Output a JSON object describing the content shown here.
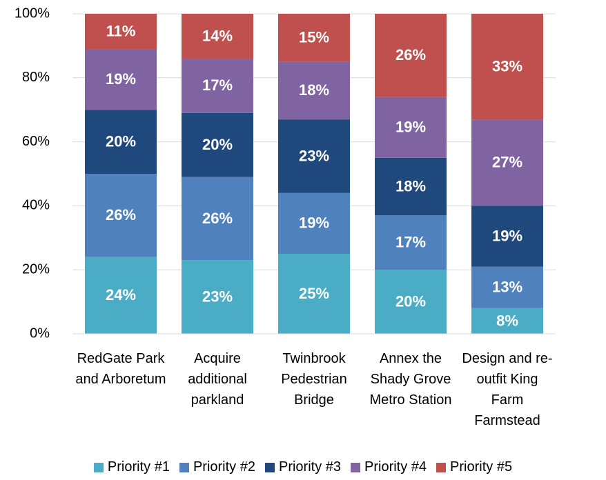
{
  "chart_data": {
    "type": "stacked_bar",
    "categories": [
      "RedGate Park and Arboretum",
      "Acquire additional parkland",
      "Twinbrook Pedestrian Bridge",
      "Annex the Shady Grove Metro Station",
      "Design and re-outfit King Farm Farmstead"
    ],
    "series": [
      {
        "name": "Priority #1",
        "color": "#4bacc6",
        "values": [
          24,
          23,
          25,
          20,
          8
        ],
        "value_labels": [
          "24%",
          "23%",
          "25%",
          "20%",
          "8%"
        ]
      },
      {
        "name": "Priority #2",
        "color": "#4f81bd",
        "values": [
          26,
          26,
          19,
          17,
          13
        ],
        "value_labels": [
          "26%",
          "26%",
          "19%",
          "17%",
          "13%"
        ]
      },
      {
        "name": "Priority #3",
        "color": "#1f497d",
        "values": [
          20,
          20,
          23,
          18,
          19
        ],
        "value_labels": [
          "20%",
          "20%",
          "23%",
          "18%",
          "19%"
        ]
      },
      {
        "name": "Priority #4",
        "color": "#8064a2",
        "values": [
          19,
          17,
          18,
          19,
          27
        ],
        "value_labels": [
          "19%",
          "17%",
          "18%",
          "19%",
          "27%"
        ]
      },
      {
        "name": "Priority #5",
        "color": "#c0504d",
        "values": [
          11,
          14,
          15,
          26,
          33
        ],
        "value_labels": [
          "11%",
          "14%",
          "15%",
          "26%",
          "33%"
        ]
      }
    ],
    "ylim": [
      0,
      100
    ],
    "yticks": [
      {
        "value": 0,
        "label": "0%"
      },
      {
        "value": 20,
        "label": "20%"
      },
      {
        "value": 40,
        "label": "40%"
      },
      {
        "value": 60,
        "label": "60%"
      },
      {
        "value": 80,
        "label": "80%"
      },
      {
        "value": 100,
        "label": "100%"
      }
    ],
    "grid": true,
    "legend": "bottom"
  }
}
